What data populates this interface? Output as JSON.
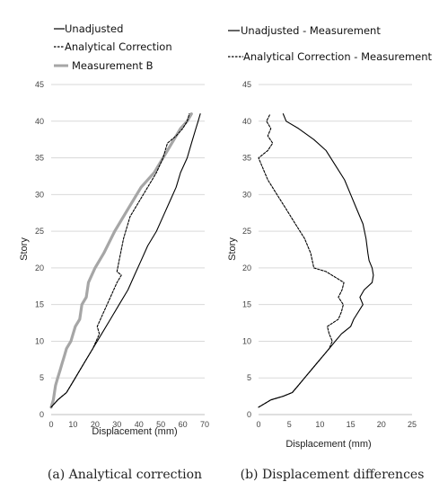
{
  "chart_data": [
    {
      "type": "line",
      "caption": "(a) Analytical correction",
      "xlabel": "Displacement (mm)",
      "ylabel": "Story",
      "xlim": [
        0,
        70
      ],
      "ylim": [
        0,
        45
      ],
      "xticks": [
        "0",
        "10",
        "20",
        "30",
        "40",
        "50",
        "60",
        "70"
      ],
      "yticks": [
        "0",
        "5",
        "10",
        "15",
        "20",
        "25",
        "30",
        "35",
        "40",
        "45"
      ],
      "grid": "horizontal",
      "legend_position": "top-left, above plot",
      "series": [
        {
          "name": "Unadjusted",
          "color": "#000000",
          "dash": "solid",
          "points": [
            [
              0,
              1
            ],
            [
              3,
              2
            ],
            [
              7,
              3
            ],
            [
              11,
              5
            ],
            [
              15,
              7
            ],
            [
              19,
              9
            ],
            [
              23,
              11
            ],
            [
              27,
              13
            ],
            [
              31,
              15
            ],
            [
              35,
              17
            ],
            [
              38,
              19
            ],
            [
              41,
              21
            ],
            [
              44,
              23
            ],
            [
              48,
              25
            ],
            [
              51,
              27
            ],
            [
              54,
              29
            ],
            [
              57,
              31
            ],
            [
              59,
              33
            ],
            [
              62,
              35
            ],
            [
              64,
              37
            ],
            [
              66,
              39
            ],
            [
              67,
              40
            ],
            [
              68,
              41
            ]
          ]
        },
        {
          "name": "Analytical Correction",
          "color": "#000000",
          "dash": "dashed",
          "points": [
            [
              0,
              1
            ],
            [
              3,
              2
            ],
            [
              7,
              3
            ],
            [
              11,
              5
            ],
            [
              15,
              7
            ],
            [
              19,
              9
            ],
            [
              22,
              11
            ],
            [
              21,
              12
            ],
            [
              24,
              14
            ],
            [
              27,
              16
            ],
            [
              30,
              18
            ],
            [
              32,
              19
            ],
            [
              30,
              19.5
            ],
            [
              31,
              21
            ],
            [
              33,
              24
            ],
            [
              36,
              27
            ],
            [
              40,
              29
            ],
            [
              44,
              31
            ],
            [
              48,
              33
            ],
            [
              51,
              35
            ],
            [
              53,
              37
            ],
            [
              57,
              38
            ],
            [
              60,
              39
            ],
            [
              62,
              40
            ],
            [
              63,
              41
            ]
          ]
        },
        {
          "name": "Measurement B",
          "color": "#a6a6a6",
          "dash": "solid",
          "points": [
            [
              0,
              1
            ],
            [
              1,
              2
            ],
            [
              2,
              4
            ],
            [
              3,
              5
            ],
            [
              4,
              6
            ],
            [
              5,
              7
            ],
            [
              6,
              8
            ],
            [
              7,
              9
            ],
            [
              9,
              10
            ],
            [
              10,
              11
            ],
            [
              11,
              12
            ],
            [
              13,
              13
            ],
            [
              14,
              15
            ],
            [
              16,
              16
            ],
            [
              17,
              18
            ],
            [
              20,
              20
            ],
            [
              24,
              22
            ],
            [
              29,
              25
            ],
            [
              35,
              28
            ],
            [
              41,
              31
            ],
            [
              47,
              33
            ],
            [
              53,
              36
            ],
            [
              59,
              39
            ],
            [
              62,
              40
            ],
            [
              64,
              41
            ]
          ]
        }
      ]
    },
    {
      "type": "line",
      "caption": "(b) Displacement differences",
      "xlabel": "Displacement (mm)",
      "ylabel": "Story",
      "xlim": [
        0,
        25
      ],
      "ylim": [
        0,
        45
      ],
      "xticks": [
        "0",
        "5",
        "10",
        "15",
        "20",
        "25"
      ],
      "yticks": [
        "0",
        "5",
        "10",
        "15",
        "20",
        "25",
        "30",
        "35",
        "40",
        "45"
      ],
      "grid": "horizontal",
      "legend_position": "top-left, above plot",
      "series": [
        {
          "name": "Unadjusted - Measurement",
          "color": "#000000",
          "dash": "solid",
          "points": [
            [
              0,
              1
            ],
            [
              1,
              1.5
            ],
            [
              2,
              2
            ],
            [
              4,
              2.5
            ],
            [
              5.5,
              3
            ],
            [
              6.5,
              4
            ],
            [
              7.5,
              5
            ],
            [
              8.5,
              6
            ],
            [
              9.5,
              7
            ],
            [
              10.5,
              8
            ],
            [
              11.5,
              9
            ],
            [
              12.5,
              10
            ],
            [
              13.5,
              11
            ],
            [
              15,
              12
            ],
            [
              15.5,
              13
            ],
            [
              17,
              15
            ],
            [
              16.5,
              16
            ],
            [
              17.2,
              17
            ],
            [
              18.5,
              18
            ],
            [
              18.7,
              19
            ],
            [
              18.5,
              20
            ],
            [
              18,
              21
            ],
            [
              17.8,
              22
            ],
            [
              17.5,
              24
            ],
            [
              17,
              26
            ],
            [
              16,
              28
            ],
            [
              15,
              30
            ],
            [
              14,
              32
            ],
            [
              12.5,
              34
            ],
            [
              11,
              36
            ],
            [
              9,
              37.5
            ],
            [
              6.5,
              39
            ],
            [
              4.5,
              40
            ],
            [
              4,
              41
            ]
          ]
        },
        {
          "name": "Analytical Correction - Measurement",
          "color": "#000000",
          "dash": "dashed",
          "points": [
            [
              0,
              1
            ],
            [
              1,
              1.5
            ],
            [
              2,
              2
            ],
            [
              4,
              2.5
            ],
            [
              5.5,
              3
            ],
            [
              6.5,
              4
            ],
            [
              7.5,
              5
            ],
            [
              8.5,
              6
            ],
            [
              9.5,
              7
            ],
            [
              10.5,
              8
            ],
            [
              11.5,
              9
            ],
            [
              12,
              10
            ],
            [
              11.5,
              11
            ],
            [
              11.2,
              12
            ],
            [
              13,
              13
            ],
            [
              13.5,
              14
            ],
            [
              13.8,
              15
            ],
            [
              13,
              16
            ],
            [
              13.6,
              17
            ],
            [
              13.9,
              18
            ],
            [
              11,
              19.5
            ],
            [
              9,
              20
            ],
            [
              8.5,
              22
            ],
            [
              7.5,
              24
            ],
            [
              6,
              26
            ],
            [
              4.5,
              28
            ],
            [
              3,
              30
            ],
            [
              1.5,
              32
            ],
            [
              0.5,
              34
            ],
            [
              0,
              35
            ],
            [
              1.5,
              36
            ],
            [
              2.3,
              37
            ],
            [
              1.5,
              38
            ],
            [
              2,
              39
            ],
            [
              1.3,
              40
            ],
            [
              1.9,
              41
            ]
          ]
        }
      ]
    }
  ]
}
